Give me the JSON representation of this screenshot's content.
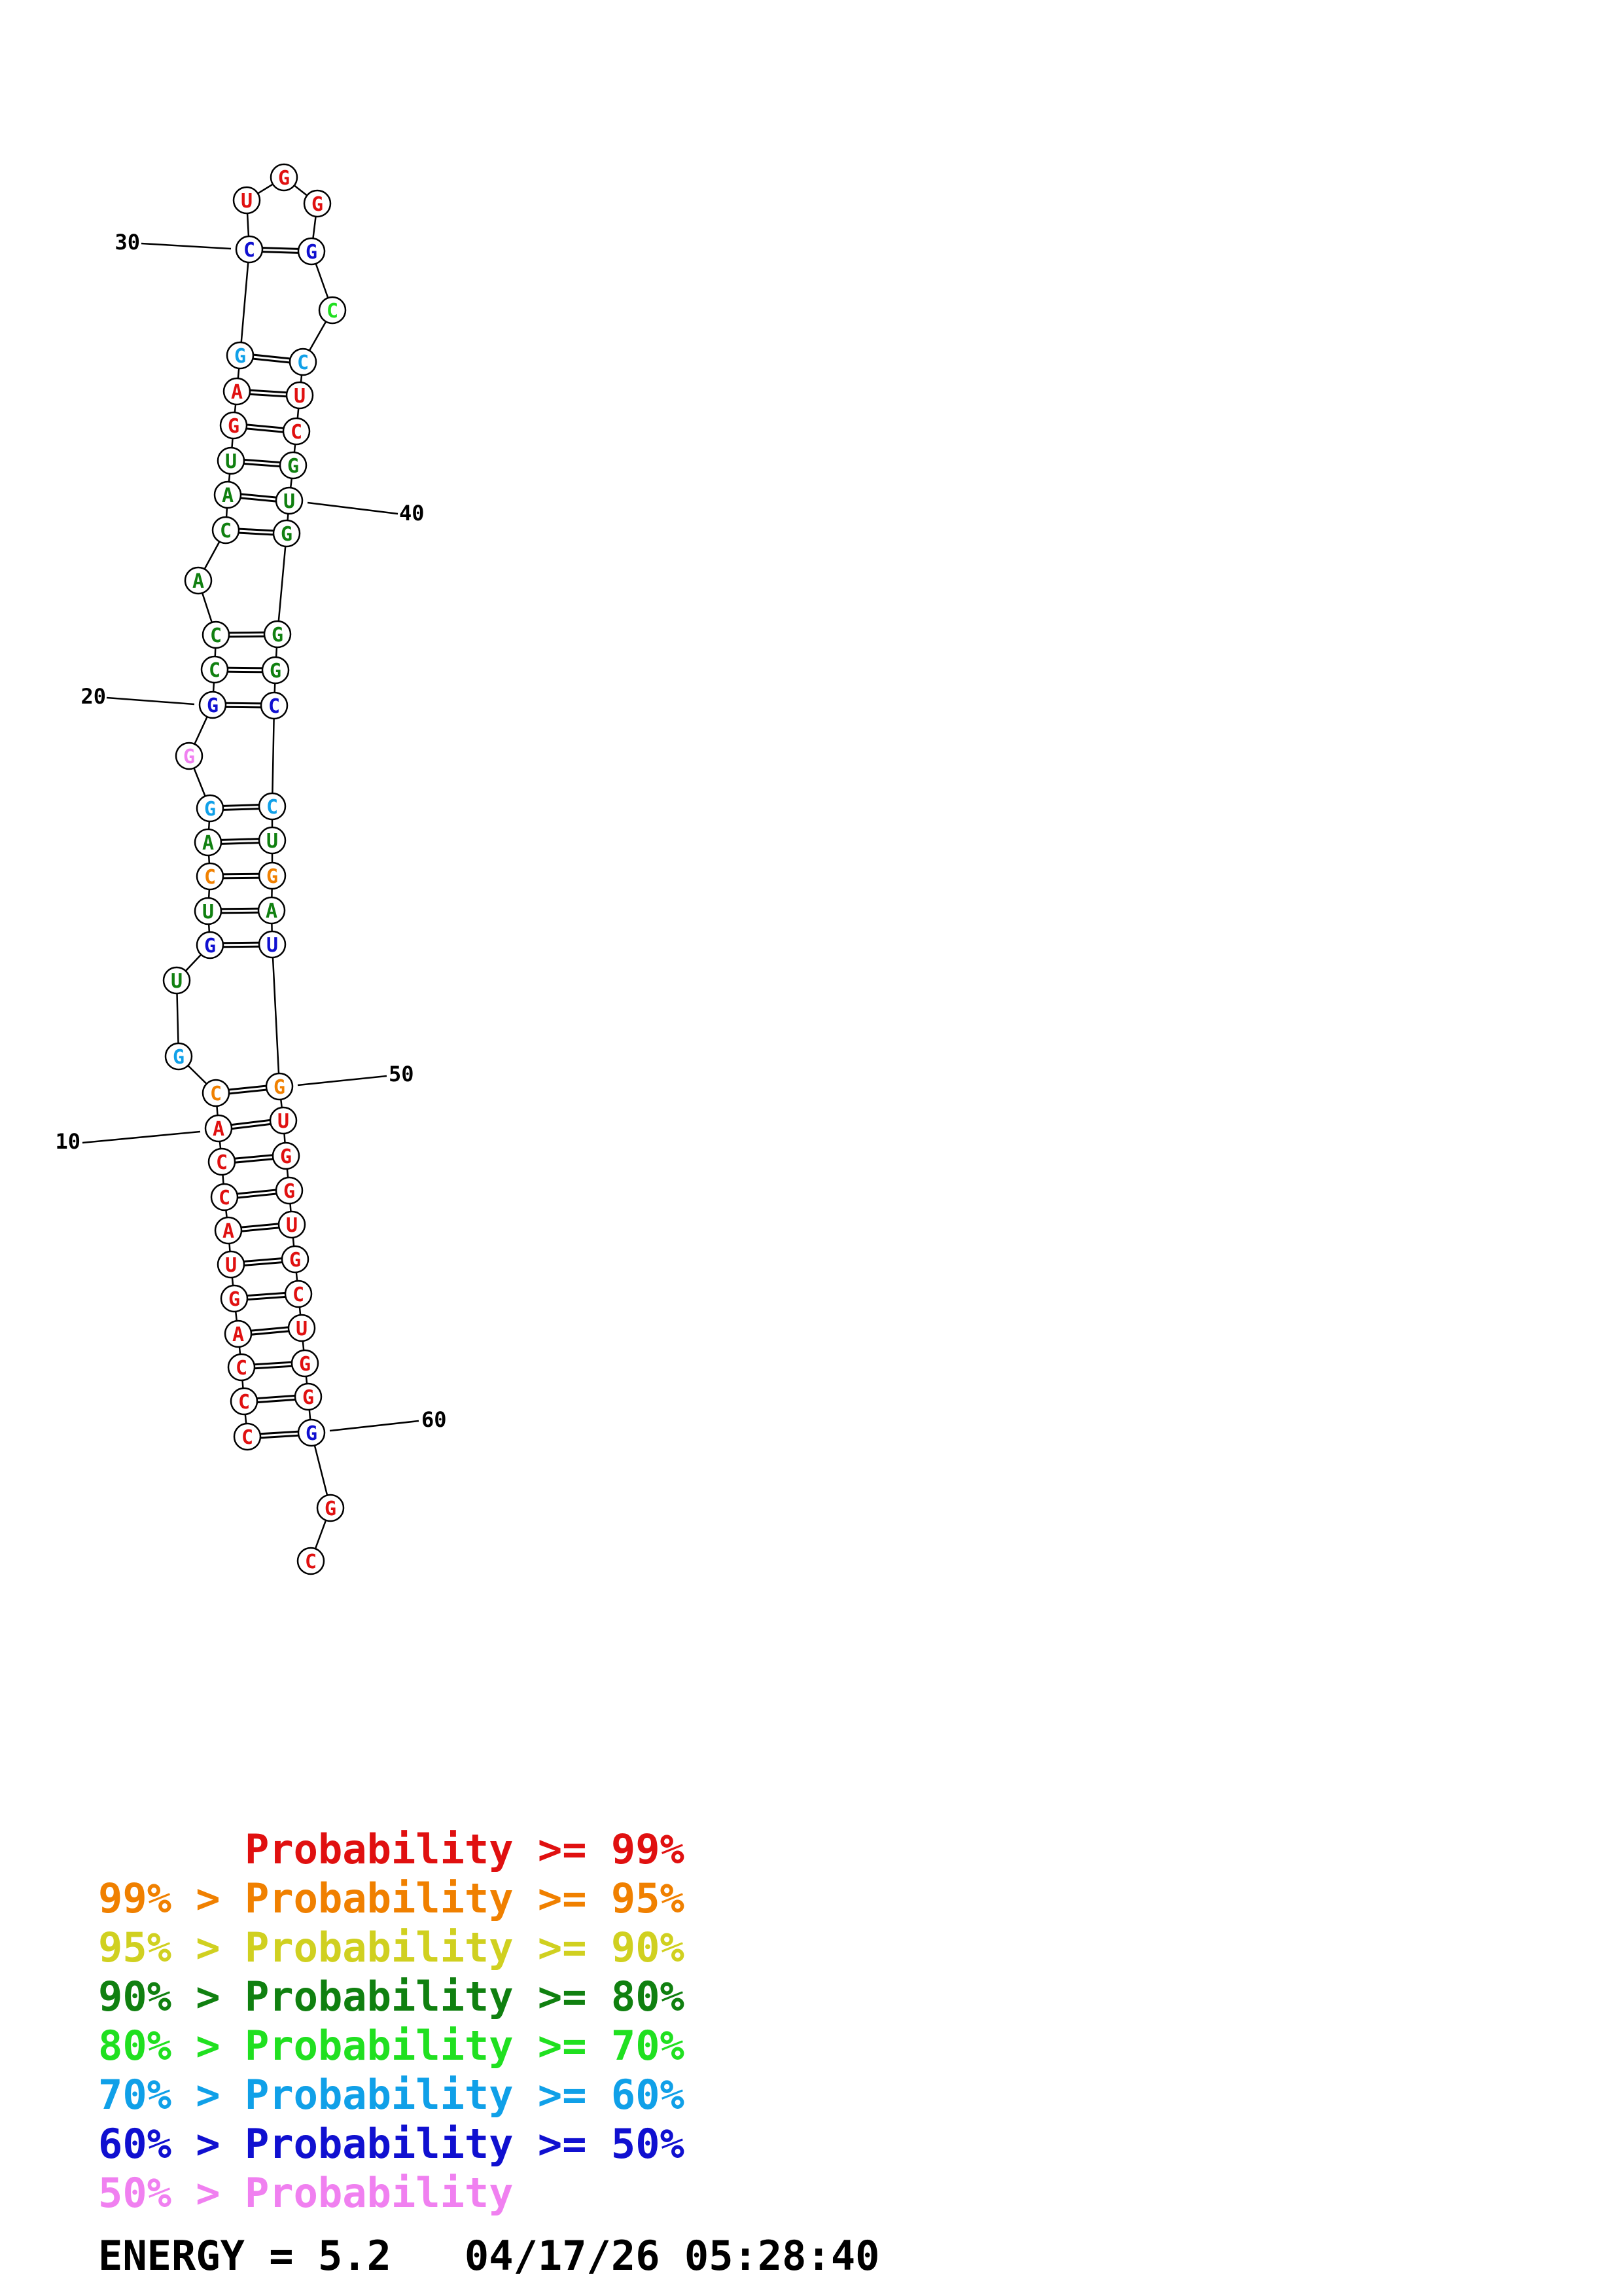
{
  "structure": {
    "nucleotides": [
      {
        "index": 1,
        "base": "C",
        "color": "#e01010"
      },
      {
        "index": 2,
        "base": "C",
        "color": "#e01010"
      },
      {
        "index": 3,
        "base": "C",
        "color": "#e01010"
      },
      {
        "index": 4,
        "base": "A",
        "color": "#e01010"
      },
      {
        "index": 5,
        "base": "G",
        "color": "#e01010"
      },
      {
        "index": 6,
        "base": "U",
        "color": "#e01010"
      },
      {
        "index": 7,
        "base": "A",
        "color": "#e01010"
      },
      {
        "index": 8,
        "base": "C",
        "color": "#e01010"
      },
      {
        "index": 9,
        "base": "C",
        "color": "#e01010"
      },
      {
        "index": 10,
        "base": "A",
        "color": "#e01010"
      },
      {
        "index": 11,
        "base": "C",
        "color": "#f08000"
      },
      {
        "index": 12,
        "base": "G",
        "color": "#10a0e8"
      },
      {
        "index": 13,
        "base": "U",
        "color": "#108010"
      },
      {
        "index": 14,
        "base": "G",
        "color": "#1010d0"
      },
      {
        "index": 15,
        "base": "U",
        "color": "#108010"
      },
      {
        "index": 16,
        "base": "C",
        "color": "#f08000"
      },
      {
        "index": 17,
        "base": "A",
        "color": "#108010"
      },
      {
        "index": 18,
        "base": "G",
        "color": "#10a0e8"
      },
      {
        "index": 19,
        "base": "G",
        "color": "#f080f0"
      },
      {
        "index": 20,
        "base": "G",
        "color": "#1010d0"
      },
      {
        "index": 21,
        "base": "C",
        "color": "#108010"
      },
      {
        "index": 22,
        "base": "C",
        "color": "#108010"
      },
      {
        "index": 23,
        "base": "A",
        "color": "#108010"
      },
      {
        "index": 24,
        "base": "C",
        "color": "#108010"
      },
      {
        "index": 25,
        "base": "A",
        "color": "#108010"
      },
      {
        "index": 26,
        "base": "U",
        "color": "#108010"
      },
      {
        "index": 27,
        "base": "G",
        "color": "#e01010"
      },
      {
        "index": 28,
        "base": "A",
        "color": "#e01010"
      },
      {
        "index": 29,
        "base": "G",
        "color": "#10a0e8"
      },
      {
        "index": 30,
        "base": "C",
        "color": "#1010d0"
      },
      {
        "index": 31,
        "base": "U",
        "color": "#e01010"
      },
      {
        "index": 32,
        "base": "G",
        "color": "#e01010"
      },
      {
        "index": 33,
        "base": "G",
        "color": "#e01010"
      },
      {
        "index": 34,
        "base": "G",
        "color": "#1010d0"
      },
      {
        "index": 35,
        "base": "C",
        "color": "#20e020"
      },
      {
        "index": 36,
        "base": "C",
        "color": "#10a0e8"
      },
      {
        "index": 37,
        "base": "U",
        "color": "#e01010"
      },
      {
        "index": 38,
        "base": "C",
        "color": "#e01010"
      },
      {
        "index": 39,
        "base": "G",
        "color": "#108010"
      },
      {
        "index": 40,
        "base": "U",
        "color": "#108010"
      },
      {
        "index": 41,
        "base": "G",
        "color": "#108010"
      },
      {
        "index": 42,
        "base": "G",
        "color": "#108010"
      },
      {
        "index": 43,
        "base": "G",
        "color": "#108010"
      },
      {
        "index": 44,
        "base": "C",
        "color": "#1010d0"
      },
      {
        "index": 45,
        "base": "C",
        "color": "#10a0e8"
      },
      {
        "index": 46,
        "base": "U",
        "color": "#108010"
      },
      {
        "index": 47,
        "base": "G",
        "color": "#f08000"
      },
      {
        "index": 48,
        "base": "A",
        "color": "#108010"
      },
      {
        "index": 49,
        "base": "U",
        "color": "#1010d0"
      },
      {
        "index": 50,
        "base": "G",
        "color": "#f08000"
      },
      {
        "index": 51,
        "base": "U",
        "color": "#e01010"
      },
      {
        "index": 52,
        "base": "G",
        "color": "#e01010"
      },
      {
        "index": 53,
        "base": "G",
        "color": "#e01010"
      },
      {
        "index": 54,
        "base": "U",
        "color": "#e01010"
      },
      {
        "index": 55,
        "base": "G",
        "color": "#e01010"
      },
      {
        "index": 56,
        "base": "C",
        "color": "#e01010"
      },
      {
        "index": 57,
        "base": "U",
        "color": "#e01010"
      },
      {
        "index": 58,
        "base": "G",
        "color": "#e01010"
      },
      {
        "index": 59,
        "base": "G",
        "color": "#e01010"
      },
      {
        "index": 60,
        "base": "G",
        "color": "#1010d0"
      },
      {
        "index": 61,
        "base": "G",
        "color": "#e01010"
      },
      {
        "index": 62,
        "base": "C",
        "color": "#e01010"
      }
    ],
    "pairs": [
      [
        1,
        60
      ],
      [
        2,
        59
      ],
      [
        3,
        58
      ],
      [
        4,
        57
      ],
      [
        5,
        56
      ],
      [
        6,
        55
      ],
      [
        7,
        54
      ],
      [
        8,
        53
      ],
      [
        9,
        52
      ],
      [
        10,
        51
      ],
      [
        11,
        50
      ],
      [
        14,
        49
      ],
      [
        15,
        48
      ],
      [
        16,
        47
      ],
      [
        17,
        46
      ],
      [
        18,
        45
      ],
      [
        20,
        44
      ],
      [
        21,
        43
      ],
      [
        22,
        42
      ],
      [
        24,
        41
      ],
      [
        25,
        40
      ],
      [
        26,
        39
      ],
      [
        27,
        38
      ],
      [
        28,
        37
      ],
      [
        29,
        36
      ],
      [
        30,
        34
      ]
    ],
    "position_labels": [
      {
        "text": "10",
        "index": 10
      },
      {
        "text": "20",
        "index": 20
      },
      {
        "text": "30",
        "index": 30
      },
      {
        "text": "40",
        "index": 40
      },
      {
        "text": "50",
        "index": 50
      },
      {
        "text": "60",
        "index": 60
      }
    ]
  },
  "legend": [
    {
      "prefix": "",
      "label": "Probability",
      "suffix": ">= 99%",
      "color": "#e01010"
    },
    {
      "prefix": "99% >",
      "label": "Probability",
      "suffix": ">= 95%",
      "color": "#f08000"
    },
    {
      "prefix": "95% >",
      "label": "Probability",
      "suffix": ">= 90%",
      "color": "#d0d020"
    },
    {
      "prefix": "90% >",
      "label": "Probability",
      "suffix": ">= 80%",
      "color": "#108010"
    },
    {
      "prefix": "80% >",
      "label": "Probability",
      "suffix": ">= 70%",
      "color": "#20e020"
    },
    {
      "prefix": "70% >",
      "label": "Probability",
      "suffix": ">= 60%",
      "color": "#10a0e8"
    },
    {
      "prefix": "60% >",
      "label": "Probability",
      "suffix": ">= 50%",
      "color": "#1010d0"
    },
    {
      "prefix": "50% >",
      "label": "Probability",
      "suffix": "",
      "color": "#f080f0"
    }
  ],
  "footer": {
    "energy": "ENERGY = 5.2",
    "timestamp": "04/17/26 05:28:40"
  }
}
